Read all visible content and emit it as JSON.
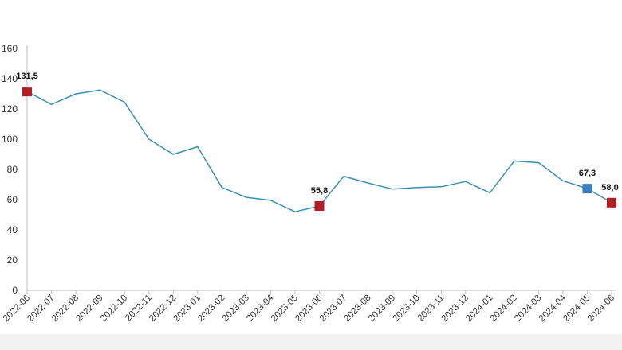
{
  "chart_data": {
    "type": "line",
    "title": "",
    "xlabel": "",
    "ylabel": "",
    "ylim": [
      0,
      160
    ],
    "yticks": [
      0,
      20,
      40,
      60,
      80,
      100,
      120,
      140,
      160
    ],
    "grid": false,
    "legend": "none",
    "categories": [
      "2022-06",
      "2022-07",
      "2022-08",
      "2022-09",
      "2022-10",
      "2022-11",
      "2022-12",
      "2023-01",
      "2023-02",
      "2023-03",
      "2023-04",
      "2023-05",
      "2023-06",
      "2023-07",
      "2023-08",
      "2023-09",
      "2023-10",
      "2023-11",
      "2023-12",
      "2024-01",
      "2024-02",
      "2024-03",
      "2024-04",
      "2024-05",
      "2024-06"
    ],
    "series": [
      {
        "values": [
          131.5,
          123,
          130,
          132.5,
          124.5,
          100,
          90,
          95,
          68,
          61.5,
          59.5,
          52,
          55.8,
          75.5,
          71,
          67,
          68,
          68.5,
          72,
          64.5,
          85.5,
          84.5,
          72.5,
          67.3,
          58.0
        ],
        "color": "#3a8fb7"
      }
    ],
    "highlighted_points": [
      {
        "category": "2022-06",
        "value": 131.5,
        "label": "131,5",
        "color": "#b11f24"
      },
      {
        "category": "2023-06",
        "value": 55.8,
        "label": "55,8",
        "color": "#b11f24"
      },
      {
        "category": "2024-05",
        "value": 67.3,
        "label": "67,3",
        "color": "#3a7fbf"
      },
      {
        "category": "2024-06",
        "value": 58.0,
        "label": "58,0",
        "color": "#b11f24"
      }
    ]
  }
}
